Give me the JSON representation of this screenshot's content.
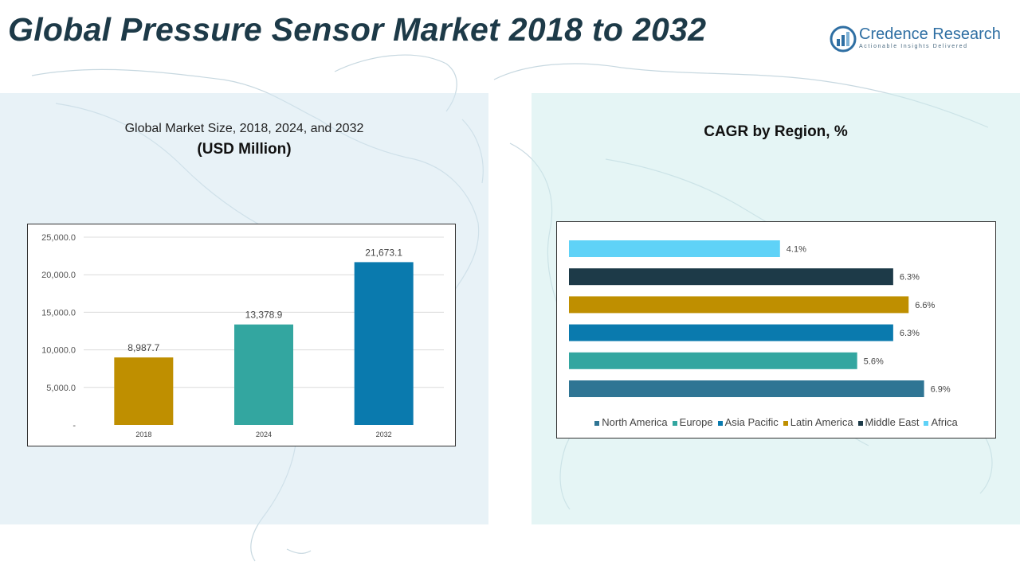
{
  "header": {
    "title": "Global Pressure Sensor Market 2018 to 2032"
  },
  "logo": {
    "name": "Credence Research",
    "tagline": "Actionable Insights Delivered"
  },
  "left_panel": {
    "subtitle": "Global Market Size, 2018, 2024, and 2032",
    "unit": "(USD Million)"
  },
  "right_panel": {
    "title": "CAGR by Region, %"
  },
  "colors": {
    "gold": "#bf8f00",
    "teal": "#33a6a0",
    "blue": "#0a7aae",
    "steel": "#2f7594",
    "navy": "#1d3a48",
    "sky": "#5fd2f7"
  },
  "chart_data": [
    {
      "type": "bar",
      "title": "Global Market Size, 2018, 2024, and 2032",
      "ylabel": "USD Million",
      "categories": [
        "2018",
        "2024",
        "2032"
      ],
      "values": [
        8987.7,
        13378.9,
        21673.1
      ],
      "value_labels": [
        "8,987.7",
        "13,378.9",
        "21,673.1"
      ],
      "bar_colors": [
        "#bf8f00",
        "#33a6a0",
        "#0a7aae"
      ],
      "ylim": [
        0,
        25000
      ],
      "yticks": [
        0,
        5000,
        10000,
        15000,
        20000,
        25000
      ],
      "ytick_labels": [
        "-",
        "5,000.0",
        "10,000.0",
        "15,000.0",
        "20,000.0",
        "25,000.0"
      ],
      "grid": true
    },
    {
      "type": "bar",
      "orientation": "horizontal",
      "title": "CAGR by Region, %",
      "categories": [
        "North America",
        "Europe",
        "Asia Pacific",
        "Latin America",
        "Middle East",
        "Africa"
      ],
      "values": [
        6.9,
        5.6,
        6.3,
        6.6,
        6.3,
        4.1
      ],
      "value_labels": [
        "6.9%",
        "5.6%",
        "6.3%",
        "6.6%",
        "6.3%",
        "4.1%"
      ],
      "bar_colors": [
        "#2f7594",
        "#33a6a0",
        "#0a7aae",
        "#bf8f00",
        "#1d3a48",
        "#5fd2f7"
      ],
      "xlim": [
        0,
        7.2
      ],
      "legend_position": "bottom",
      "grid": false
    }
  ]
}
